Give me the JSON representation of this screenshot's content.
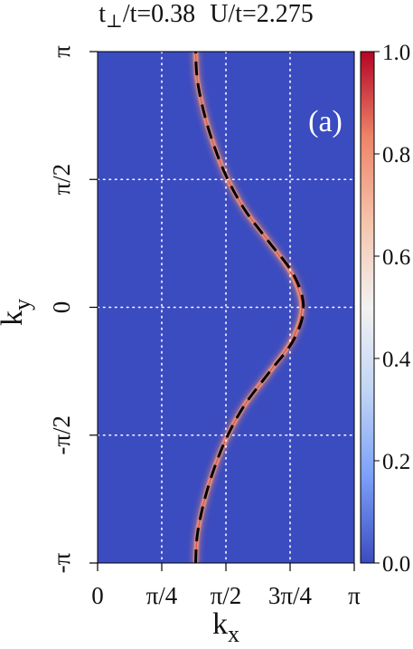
{
  "chart_data": {
    "type": "heatmap",
    "title_parts": {
      "t": "t",
      "perp": "⊥",
      "ratio_text": "/t=0.38",
      "u_text": "U/t=2.275"
    },
    "panel_label": "(a)",
    "xlabel": {
      "main": "k",
      "sub": "x"
    },
    "ylabel": {
      "main": "k",
      "sub": "y"
    },
    "xlim": [
      0,
      3.14159
    ],
    "ylim": [
      -3.14159,
      3.14159
    ],
    "x_ticks": [
      {
        "value": 0,
        "label": "0"
      },
      {
        "value": 0.7854,
        "label": "π/4"
      },
      {
        "value": 1.5708,
        "label": "π/2"
      },
      {
        "value": 2.3562,
        "label": "3π/4"
      },
      {
        "value": 3.14159,
        "label": "π"
      }
    ],
    "y_ticks": [
      {
        "value": -3.14159,
        "label": "-π"
      },
      {
        "value": -1.5708,
        "label": "-π/2"
      },
      {
        "value": 0,
        "label": "0"
      },
      {
        "value": 1.5708,
        "label": "π/2"
      },
      {
        "value": 3.14159,
        "label": "π"
      }
    ],
    "grid": true,
    "colorbar": {
      "min": 0.0,
      "max": 1.0,
      "ticks": [
        "0.0",
        "0.2",
        "0.4",
        "0.6",
        "0.8",
        "1.0"
      ],
      "colors": [
        "#3b4cc0",
        "#7b9ff9",
        "#c0d4f5",
        "#f2f2f2",
        "#f5c4ac",
        "#ee8468",
        "#b40426"
      ]
    },
    "fermi_surface": {
      "ky": [
        -3.14159,
        -2.8,
        -2.4,
        -2.0,
        -1.6,
        -1.2,
        -0.8,
        -0.4,
        0,
        0.4,
        0.8,
        1.2,
        1.6,
        2.0,
        2.4,
        2.8,
        3.14159
      ],
      "kx": [
        1.2,
        1.22,
        1.3,
        1.42,
        1.58,
        1.8,
        2.1,
        2.38,
        2.5,
        2.38,
        2.1,
        1.8,
        1.58,
        1.42,
        1.3,
        1.22,
        1.2
      ]
    },
    "dashed_fit": {
      "ky": [
        -3.14159,
        -2.8,
        -2.4,
        -2.0,
        -1.6,
        -1.2,
        -0.8,
        -0.4,
        0,
        0.4,
        0.8,
        1.2,
        1.6,
        2.0,
        2.4,
        2.8,
        3.14159
      ],
      "kx": [
        1.2,
        1.22,
        1.3,
        1.42,
        1.58,
        1.8,
        2.1,
        2.4,
        2.52,
        2.4,
        2.1,
        1.8,
        1.58,
        1.42,
        1.3,
        1.22,
        1.2
      ]
    },
    "background_level": 0.02
  }
}
